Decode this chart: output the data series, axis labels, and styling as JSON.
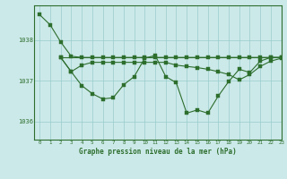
{
  "title": "Graphe pression niveau de la mer (hPa)",
  "bg_color": "#cce9e9",
  "grid_color": "#99cccc",
  "line_color": "#2d6e2d",
  "ylim": [
    1035.55,
    1038.85
  ],
  "xlim": [
    -0.5,
    23
  ],
  "yticks": [
    1036,
    1037,
    1038
  ],
  "xticks": [
    0,
    1,
    2,
    3,
    4,
    5,
    6,
    7,
    8,
    9,
    10,
    11,
    12,
    13,
    14,
    15,
    16,
    17,
    18,
    19,
    20,
    21,
    22,
    23
  ],
  "x": [
    0,
    1,
    2,
    3,
    4,
    5,
    6,
    7,
    8,
    9,
    10,
    11,
    12,
    13,
    14,
    15,
    16,
    17,
    18,
    19,
    20,
    21,
    22,
    23
  ],
  "seriesA": [
    1038.62,
    1038.37,
    1037.95,
    1037.6,
    1037.57,
    1037.57,
    1037.57,
    1037.57,
    1037.57,
    1037.57,
    1037.57,
    1037.57,
    1037.57,
    1037.57,
    1037.57,
    1037.57,
    1037.57,
    1037.57,
    1037.57,
    1037.57,
    1037.57,
    1037.57,
    1037.57,
    1037.57
  ],
  "seriesB": [
    null,
    null,
    1037.57,
    1037.57,
    1037.57,
    1037.57,
    1037.57,
    1037.57,
    1037.57,
    1037.57,
    1037.57,
    1037.57,
    1037.57,
    1037.57,
    1037.57,
    1037.57,
    1037.57,
    1037.57,
    1037.57,
    1037.57,
    1037.57,
    1037.57,
    1037.57,
    1037.57
  ],
  "seriesC": [
    null,
    null,
    1037.57,
    1037.22,
    1036.88,
    1036.68,
    1036.55,
    1036.58,
    1036.9,
    1037.1,
    1037.55,
    1037.62,
    1037.1,
    1036.95,
    1036.2,
    1036.28,
    1036.2,
    1036.62,
    1036.98,
    1037.28,
    1037.2,
    1037.48,
    1037.57,
    1037.57
  ],
  "seriesD": [
    null,
    null,
    1037.57,
    1037.22,
    1037.38,
    1037.45,
    1037.45,
    1037.45,
    1037.45,
    1037.45,
    1037.45,
    1037.45,
    1037.45,
    1037.38,
    1037.35,
    1037.32,
    1037.28,
    1037.22,
    1037.15,
    1037.02,
    1037.15,
    1037.35,
    1037.48,
    1037.55
  ]
}
